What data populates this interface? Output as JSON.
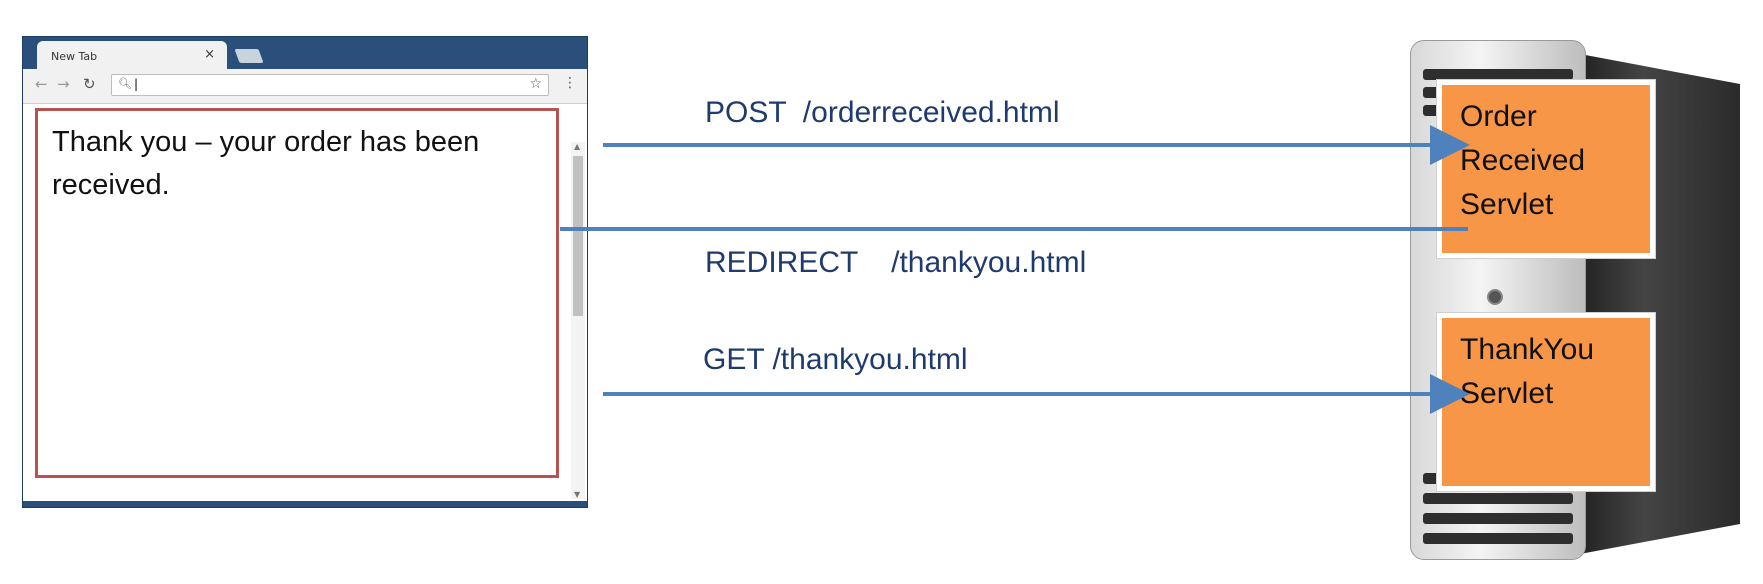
{
  "browser": {
    "tab_title": "New Tab",
    "tab_close": "×",
    "page_text_line1": "Thank you – your order has been",
    "page_text_line2": "received."
  },
  "requests": {
    "post": "POST  /orderreceived.html",
    "redirect": "REDIRECT    /thankyou.html",
    "get": "GET /thankyou.html"
  },
  "servlets": {
    "order_received": [
      "Order",
      "Received",
      "Servlet"
    ],
    "thank_you": [
      "ThankYou",
      "Servlet"
    ]
  },
  "colors": {
    "arrow": "#4f81bd",
    "label": "#1f3b6e",
    "servlet_fill": "#f79646",
    "page_border": "#b85450"
  },
  "icons": {
    "back": "arrow-left-icon",
    "forward": "arrow-right-icon",
    "reload": "reload-icon",
    "search": "search-icon",
    "bookmark": "star-icon",
    "menu": "menu-dots-icon"
  }
}
